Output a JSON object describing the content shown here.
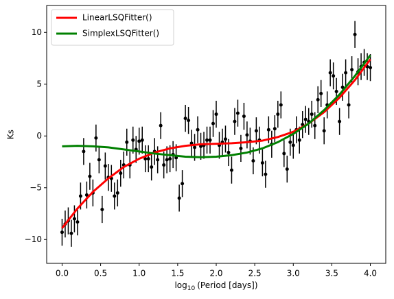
{
  "chart_data": {
    "type": "line",
    "x_label": {
      "base": "log",
      "sub": "10",
      "rest": "(Period [days])"
    },
    "y_label": "Ks",
    "xlim": [
      -0.2,
      4.2
    ],
    "ylim": [
      -12.3,
      12.6
    ],
    "xticks": [
      {
        "value": 0,
        "label": "0.0"
      },
      0.5,
      {
        "value": 1,
        "label": "1.0"
      },
      1.5,
      {
        "value": 2,
        "label": "2.0"
      },
      2.5,
      {
        "value": 3,
        "label": "3.0"
      },
      3.5,
      {
        "value": 4,
        "label": "4.0"
      }
    ],
    "yticks": [
      {
        "value": -10,
        "label": "−10"
      },
      {
        "value": -5,
        "label": "−5"
      },
      0,
      5,
      10
    ],
    "legend": "upper left",
    "series": [
      {
        "name": "LinearLSQFitter()",
        "type": "line",
        "color": "#ff0000",
        "x": [
          0,
          0.2,
          0.4,
          0.6,
          0.8,
          1,
          1.2,
          1.4,
          1.6,
          1.8,
          2,
          2.2,
          2.4,
          2.6,
          2.8,
          3,
          3.2,
          3.4,
          3.6,
          3.8,
          4
        ],
        "values": [
          -8.9,
          -7.0,
          -5.4,
          -4.1,
          -3.0,
          -2.2,
          -1.6,
          -1.2,
          -0.95,
          -0.8,
          -0.75,
          -0.7,
          -0.6,
          -0.45,
          -0.1,
          0.4,
          1.2,
          2.3,
          3.7,
          5.4,
          7.4
        ]
      },
      {
        "name": "SimplexLSQFitter()",
        "type": "line",
        "color": "#008000",
        "x": [
          0,
          0.2,
          0.4,
          0.6,
          0.8,
          1,
          1.2,
          1.4,
          1.6,
          1.8,
          2,
          2.2,
          2.4,
          2.6,
          2.8,
          3,
          3.2,
          3.4,
          3.6,
          3.8,
          4
        ],
        "values": [
          -1.0,
          -0.95,
          -1.0,
          -1.1,
          -1.3,
          -1.5,
          -1.7,
          -1.85,
          -2.0,
          -2.05,
          -2.0,
          -1.85,
          -1.6,
          -1.2,
          -0.6,
          0.2,
          1.2,
          2.5,
          4.0,
          5.8,
          7.8
        ]
      },
      {
        "type": "errorbar",
        "color": "#000000",
        "yerr": 1.3,
        "x": [
          0,
          0.04,
          0.08,
          0.12,
          0.16,
          0.2,
          0.24,
          0.28,
          0.32,
          0.36,
          0.4,
          0.44,
          0.48,
          0.52,
          0.56,
          0.6,
          0.64,
          0.68,
          0.72,
          0.76,
          0.8,
          0.84,
          0.88,
          0.92,
          0.96,
          1.0,
          1.04,
          1.08,
          1.12,
          1.16,
          1.2,
          1.24,
          1.28,
          1.32,
          1.36,
          1.4,
          1.44,
          1.48,
          1.52,
          1.56,
          1.6,
          1.64,
          1.68,
          1.72,
          1.76,
          1.8,
          1.84,
          1.88,
          1.92,
          1.96,
          2.0,
          2.04,
          2.08,
          2.12,
          2.16,
          2.2,
          2.24,
          2.28,
          2.32,
          2.36,
          2.4,
          2.44,
          2.48,
          2.52,
          2.56,
          2.6,
          2.64,
          2.68,
          2.72,
          2.76,
          2.8,
          2.84,
          2.88,
          2.92,
          2.96,
          3.0,
          3.04,
          3.08,
          3.12,
          3.16,
          3.2,
          3.24,
          3.28,
          3.32,
          3.36,
          3.4,
          3.44,
          3.48,
          3.52,
          3.56,
          3.6,
          3.64,
          3.68,
          3.72,
          3.76,
          3.8,
          3.84,
          3.88,
          3.92,
          3.96,
          4.0
        ],
        "values": [
          -9.3,
          -8.5,
          -8.2,
          -9.4,
          -8,
          -8.3,
          -5.8,
          -1.5,
          -5.7,
          -3.9,
          -5.5,
          -0.2,
          -2.3,
          -7.1,
          -2.9,
          -4,
          -4.1,
          -5.8,
          -5.5,
          -3.6,
          -2.8,
          -0.6,
          -2.8,
          -0.4,
          -1.3,
          -0.5,
          -0.4,
          -2.2,
          -2.2,
          -3.0,
          -1.5,
          -2.3,
          1.0,
          -2.8,
          -2.3,
          -2.2,
          -1.8,
          -2.1,
          -6,
          -4.6,
          1.7,
          1.5,
          -0.7,
          -1.1,
          0.6,
          -1.0,
          -0.9,
          -0.4,
          -0.4,
          1.2,
          2.1,
          -0.9,
          -0.6,
          -0.3,
          -1.6,
          -3.3,
          1.4,
          2.2,
          -1.2,
          1.9,
          0.1,
          -0.5,
          -2.4,
          0.5,
          -0.4,
          -2.6,
          -3.7,
          0.6,
          -0.8,
          0.7,
          2.1,
          3.0,
          -1.7,
          -3.2,
          -0.6,
          -0.9,
          0.6,
          -0.4,
          1.1,
          1.6,
          1.4,
          2.1,
          1.0,
          3.5,
          4.1,
          0.5,
          3.0,
          6.1,
          5.8,
          4.3,
          1.4,
          4.7,
          6.1,
          3.0,
          6.4,
          9.8,
          6.2,
          6.7,
          7.1,
          6.7,
          6.6
        ]
      }
    ]
  }
}
